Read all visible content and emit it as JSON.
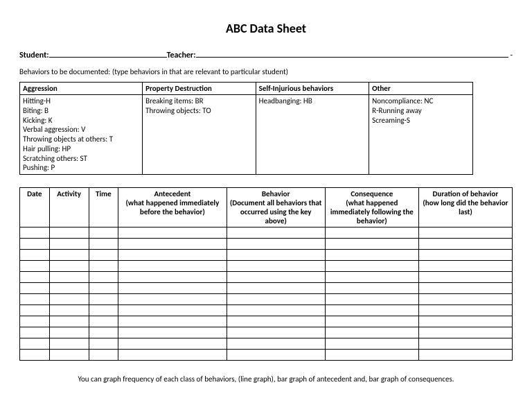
{
  "title": "ABC Data Sheet",
  "labels": {
    "student": "Student:",
    "teacher": "Teacher:"
  },
  "instruction": "Behaviors to be documented: (type behaviors in that are relevant to particular student)",
  "behaviorTable": {
    "columns": [
      {
        "header": "Aggression",
        "items": [
          "Hitting-H",
          "Biting: B",
          "Kicking: K",
          "Verbal aggression: V",
          "Throwing objects at others: T",
          "Hair pulling: HP",
          "Scratching others: ST",
          "Pushing: P"
        ]
      },
      {
        "header": "Property Destruction",
        "items": [
          "Breaking items: BR",
          "Throwing objects: TO"
        ]
      },
      {
        "header": "Self-Injurious behaviors",
        "items": [
          "Headbanging: HB"
        ]
      },
      {
        "header": "Other",
        "items": [
          "Noncompliance: NC",
          "R-Running away",
          "Screaming-S"
        ]
      }
    ],
    "colWidths": [
      "26%",
      "24%",
      "24%",
      "22%"
    ]
  },
  "dataTable": {
    "headers": [
      {
        "main": "Date",
        "sub": ""
      },
      {
        "main": "Activity",
        "sub": ""
      },
      {
        "main": "Time",
        "sub": ""
      },
      {
        "main": "Antecedent",
        "sub": "(what happened immediately before the behavior)"
      },
      {
        "main": "Behavior",
        "sub": "(Document all behaviors that occurred using the key above)"
      },
      {
        "main": "Consequence",
        "sub": "(what happened immediately following the behavior)"
      },
      {
        "main": "Duration of behavior",
        "sub": "(how long did the behavior last)"
      }
    ],
    "colWidths": [
      "6%",
      "8%",
      "6%",
      "22%",
      "20%",
      "19%",
      "19%"
    ],
    "blankRows": 12
  },
  "footer": "You can graph frequency of each class of behaviors, (line graph), bar graph of antecedent and, bar graph of consequences."
}
